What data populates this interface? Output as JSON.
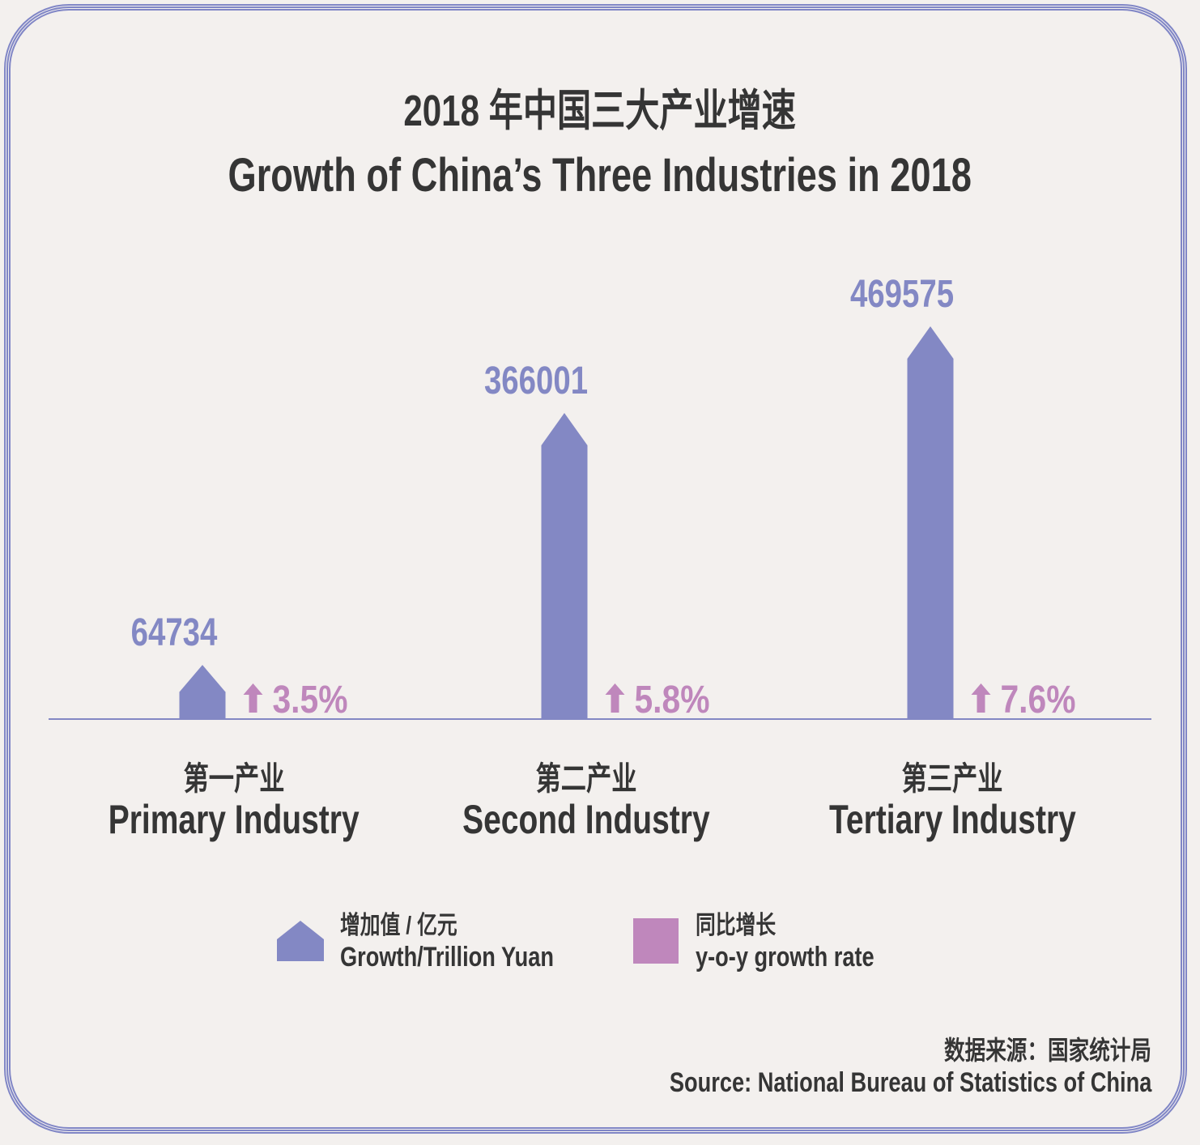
{
  "colors": {
    "value_bar": "#8388c4",
    "growth": "#bf87bc",
    "text": "#353535",
    "frame": "#8086c6",
    "background": "#f3f0ee"
  },
  "header": {
    "title_cn": "2018 年中国三大产业增速",
    "title_en": "Growth of China’s Three Industries in 2018"
  },
  "chart_data": {
    "type": "bar",
    "title": "Growth of China’s Three Industries in 2018",
    "categories": [
      {
        "cn": "第一产业",
        "en": "Primary Industry"
      },
      {
        "cn": "第二产业",
        "en": "Second Industry"
      },
      {
        "cn": "第三产业",
        "en": "Tertiary Industry"
      }
    ],
    "series": [
      {
        "name": "增加值 / 亿元 Growth/Trillion Yuan",
        "values": [
          64734,
          366001,
          469575
        ],
        "labels": [
          "64734",
          "366001",
          "469575"
        ]
      },
      {
        "name": "同比增长 y-o-y growth rate",
        "values": [
          3.5,
          5.8,
          7.6
        ],
        "labels": [
          "3.5%",
          "5.8%",
          "7.6%"
        ]
      }
    ],
    "ylim": [
      0,
      469575
    ],
    "grid": false,
    "legend_placement": "bottom-center"
  },
  "legend": {
    "items": [
      {
        "cn": "增加值 / 亿元",
        "en": "Growth/Trillion Yuan",
        "icon": "house-arrow-icon"
      },
      {
        "cn": "同比增长",
        "en": "y-o-y growth rate",
        "icon": "square-icon"
      }
    ]
  },
  "source": {
    "cn": "数据来源：国家统计局",
    "en": "Source:  National Bureau of Statistics of China"
  }
}
